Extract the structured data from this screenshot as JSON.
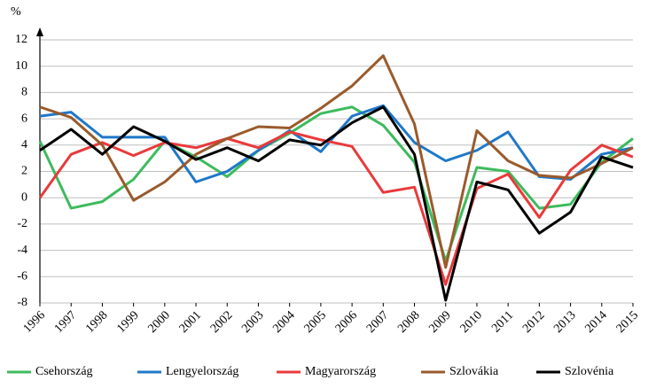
{
  "chart_data": {
    "type": "line",
    "y_label": "%",
    "categories": [
      "1996",
      "1997",
      "1998",
      "1999",
      "2000",
      "2001",
      "2002",
      "2003",
      "2004",
      "2005",
      "2006",
      "2007",
      "2008",
      "2009",
      "2010",
      "2011",
      "2012",
      "2013",
      "2014",
      "2015"
    ],
    "ylim": [
      -8,
      12
    ],
    "yticks": [
      -8,
      -6,
      -4,
      -2,
      0,
      2,
      4,
      6,
      8,
      10,
      12
    ],
    "grid": true,
    "legend": "bottom",
    "series": [
      {
        "name": "Csehország",
        "color": "#3dbb5c",
        "values": [
          4.3,
          -0.8,
          -0.3,
          1.4,
          4.3,
          3.1,
          1.6,
          3.6,
          4.9,
          6.4,
          6.9,
          5.5,
          2.7,
          -4.8,
          2.3,
          2.0,
          -0.8,
          -0.5,
          2.7,
          4.5
        ]
      },
      {
        "name": "Lengyelország",
        "color": "#1f78c8",
        "values": [
          6.2,
          6.5,
          4.6,
          4.6,
          4.6,
          1.2,
          2.0,
          3.6,
          5.1,
          3.5,
          6.2,
          7.0,
          4.2,
          2.8,
          3.6,
          5.0,
          1.6,
          1.4,
          3.3,
          3.8
        ]
      },
      {
        "name": "Magyarország",
        "color": "#e93a3c",
        "values": [
          0.0,
          3.3,
          4.2,
          3.2,
          4.2,
          3.8,
          4.5,
          3.8,
          5.0,
          4.4,
          3.9,
          0.4,
          0.8,
          -6.6,
          0.7,
          1.8,
          -1.5,
          2.1,
          4.0,
          3.1
        ]
      },
      {
        "name": "Szlovákia",
        "color": "#9a5a2b",
        "values": [
          6.9,
          6.1,
          4.0,
          -0.2,
          1.2,
          3.3,
          4.5,
          5.4,
          5.3,
          6.8,
          8.5,
          10.8,
          5.6,
          -5.3,
          5.1,
          2.8,
          1.7,
          1.5,
          2.6,
          3.8
        ]
      },
      {
        "name": "Szlovénia",
        "color": "#000000",
        "values": [
          3.6,
          5.2,
          3.3,
          5.4,
          4.3,
          2.9,
          3.8,
          2.8,
          4.4,
          4.0,
          5.7,
          6.9,
          3.3,
          -7.8,
          1.2,
          0.6,
          -2.7,
          -1.1,
          3.1,
          2.3
        ]
      }
    ]
  }
}
